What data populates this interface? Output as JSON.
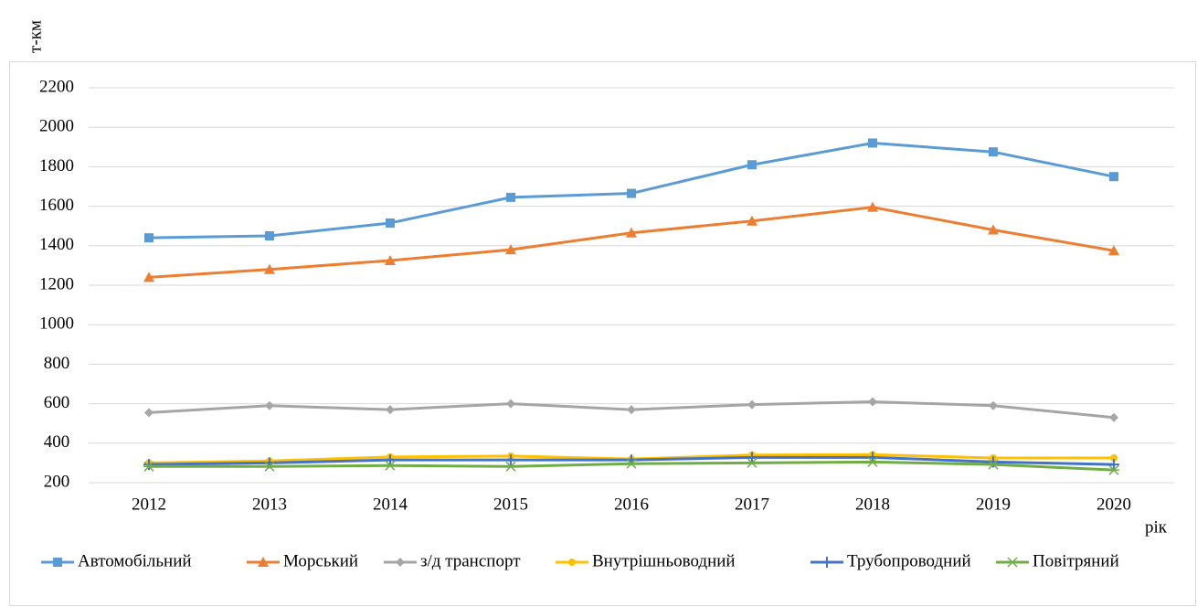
{
  "chart_data": {
    "type": "line",
    "y_label": "т-км",
    "x_label": "рік",
    "categories": [
      "2012",
      "2013",
      "2014",
      "2015",
      "2016",
      "2017",
      "2018",
      "2019",
      "2020"
    ],
    "series": [
      {
        "name": "Автомобільний",
        "color": "#5b9bd5",
        "marker": "square",
        "values": [
          1440,
          1450,
          1515,
          1645,
          1665,
          1810,
          1920,
          1875,
          1750
        ]
      },
      {
        "name": "Морський",
        "color": "#ed7d31",
        "marker": "triangle",
        "values": [
          1240,
          1280,
          1325,
          1380,
          1465,
          1525,
          1595,
          1480,
          1375
        ]
      },
      {
        "name": "з/д транспорт",
        "color": "#a5a5a5",
        "marker": "diamond",
        "values": [
          555,
          590,
          570,
          600,
          570,
          595,
          610,
          590,
          530
        ]
      },
      {
        "name": "Внутрішньоводний",
        "color": "#ffc000",
        "marker": "circle",
        "values": [
          300,
          310,
          330,
          335,
          320,
          340,
          342,
          325,
          325
        ]
      },
      {
        "name": "Трубопроводний",
        "color": "#4472c4",
        "marker": "plus",
        "values": [
          292,
          300,
          315,
          315,
          315,
          328,
          328,
          305,
          292
        ]
      },
      {
        "name": "Повітряний",
        "color": "#70ad47",
        "marker": "star",
        "values": [
          282,
          282,
          287,
          282,
          296,
          300,
          305,
          292,
          264
        ]
      }
    ],
    "ylim": [
      200,
      2200
    ],
    "yticks": [
      200,
      400,
      600,
      800,
      1000,
      1200,
      1400,
      1600,
      1800,
      2000,
      2200
    ],
    "grid": true,
    "legend": "bottom"
  }
}
